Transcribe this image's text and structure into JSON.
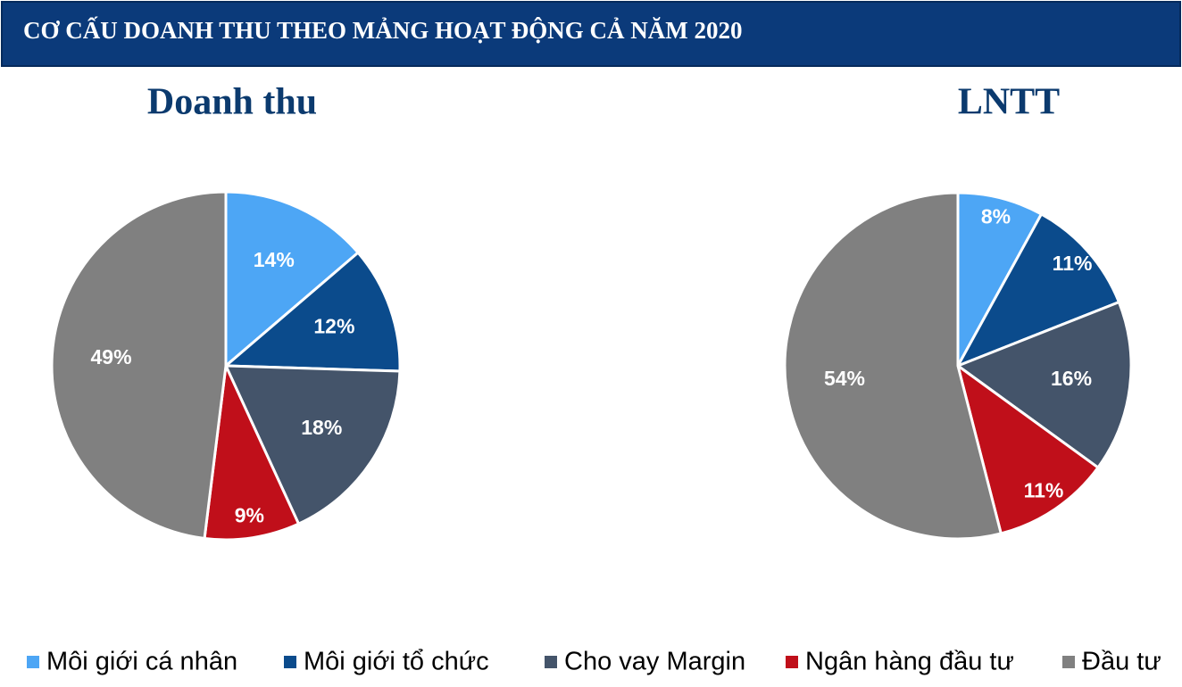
{
  "title": "CƠ CẤU DOANH THU THEO MẢNG HOẠT ĐỘNG CẢ NĂM 2020",
  "chart_data": [
    {
      "type": "pie",
      "title": "Doanh thu",
      "categories": [
        "Môi giới cá nhân",
        "Môi giới tổ chức",
        "Cho vay Margin",
        "Ngân hàng đầu tư",
        "Đầu tư"
      ],
      "values": [
        14,
        12,
        18,
        9,
        49
      ],
      "value_labels": [
        "14%",
        "12%",
        "18%",
        "9%",
        "49%"
      ],
      "colors": [
        "#4da6f5",
        "#0b4b8c",
        "#44546a",
        "#c00f1a",
        "#808080"
      ]
    },
    {
      "type": "pie",
      "title": "LNTT",
      "categories": [
        "Môi giới cá nhân",
        "Môi giới tổ chức",
        "Cho vay Margin",
        "Ngân hàng đầu tư",
        "Đầu tư"
      ],
      "values": [
        8,
        11,
        16,
        11,
        54
      ],
      "value_labels": [
        "8%",
        "11%",
        "16%",
        "11%",
        "54%"
      ],
      "colors": [
        "#4da6f5",
        "#0b4b8c",
        "#44546a",
        "#c00f1a",
        "#808080"
      ]
    }
  ]
}
